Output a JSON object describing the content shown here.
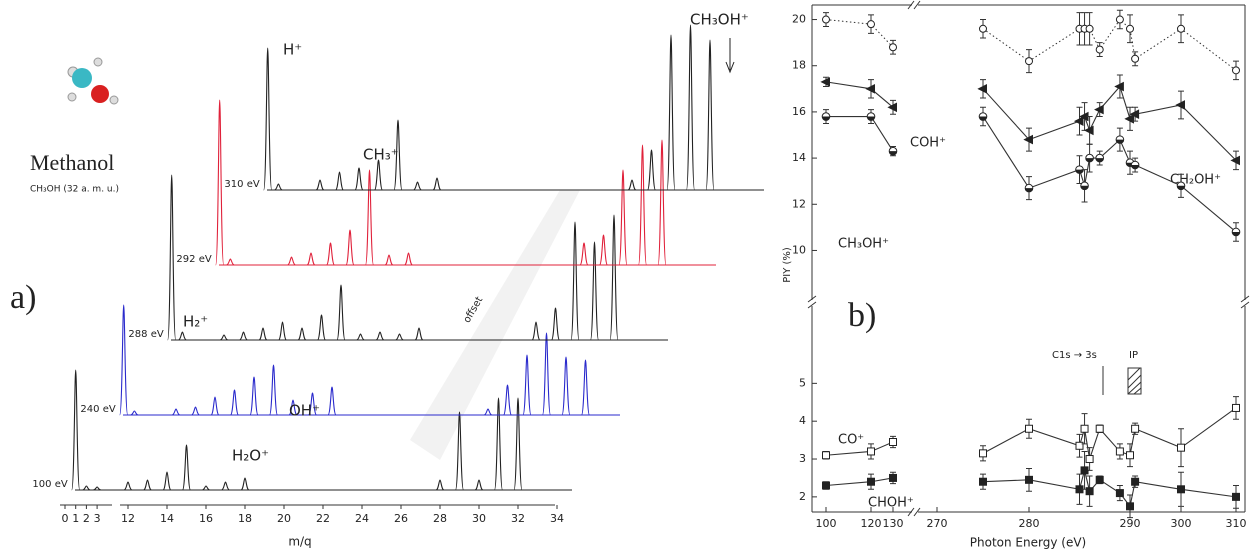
{
  "chart_data": [
    {
      "type": "spectra",
      "label": "a)",
      "title": "Methanol",
      "subtitle": "CH₃OH (32 a. m. u.)",
      "xlabel": "m/q",
      "offset_label": "offset",
      "xticks": [
        0,
        1,
        2,
        3,
        12,
        14,
        16,
        18,
        20,
        22,
        24,
        26,
        28,
        30,
        32,
        34
      ],
      "annotations": [
        "H⁺",
        "CH₃⁺",
        "CH₃OH⁺",
        "H₂⁺",
        "OH⁺",
        "H₂O⁺"
      ],
      "series": [
        {
          "name": "100 eV",
          "color": "#222222",
          "x": [
            1,
            2,
            3,
            12,
            13,
            14,
            15,
            16,
            17,
            18,
            28,
            29,
            30,
            31,
            32
          ],
          "values": [
            120,
            4,
            3,
            8,
            10,
            18,
            45,
            4,
            8,
            12,
            10,
            78,
            10,
            92,
            92
          ]
        },
        {
          "name": "240 eV",
          "color": "#2a2acc",
          "x": [
            1,
            2,
            12,
            13,
            14,
            15,
            16,
            17,
            18,
            19,
            20,
            28,
            29,
            30,
            31,
            32,
            33
          ],
          "values": [
            110,
            4,
            6,
            8,
            18,
            25,
            38,
            50,
            15,
            22,
            28,
            6,
            30,
            60,
            82,
            58,
            55
          ]
        },
        {
          "name": "288 eV",
          "color": "#222222",
          "x": [
            1,
            2,
            12,
            13,
            14,
            15,
            16,
            17,
            18,
            19,
            20,
            21,
            22,
            28,
            29,
            30,
            31,
            32
          ],
          "values": [
            165,
            8,
            5,
            8,
            12,
            18,
            12,
            25,
            55,
            6,
            8,
            6,
            12,
            18,
            32,
            118,
            98,
            125
          ]
        },
        {
          "name": "292 eV",
          "color": "#e0213a",
          "x": [
            1,
            2,
            13,
            14,
            15,
            16,
            17,
            18,
            19,
            28,
            29,
            30,
            31,
            32
          ],
          "values": [
            165,
            6,
            8,
            12,
            22,
            35,
            95,
            10,
            12,
            22,
            30,
            95,
            120,
            125
          ]
        },
        {
          "name": "310 eV",
          "color": "#222222",
          "x": [
            1,
            2,
            12,
            13,
            14,
            15,
            16,
            17,
            18,
            28,
            29,
            30,
            31,
            32
          ],
          "values": [
            142,
            6,
            10,
            18,
            22,
            30,
            70,
            8,
            12,
            10,
            40,
            155,
            165,
            150
          ]
        }
      ]
    },
    {
      "type": "scatter",
      "label": "b)",
      "xlabel": "Photon Energy (eV)",
      "ylabel": "PIY (%)",
      "xlim": [
        100,
        310
      ],
      "xticks": [
        100,
        120,
        130,
        270,
        280,
        290,
        300,
        310
      ],
      "annotations": [
        "C1s → 3s",
        "IP"
      ],
      "panels": [
        {
          "ylim": [
            9.5,
            20.5
          ],
          "yticks": [
            10,
            12,
            14,
            16,
            18,
            20
          ],
          "series": [
            {
              "name": "COH⁺",
              "marker": "circle-open",
              "line": "dotted",
              "x": [
                100,
                120,
                130,
                275,
                280,
                285,
                285.5,
                286,
                287,
                289,
                290,
                291,
                300,
                310
              ],
              "values": [
                20.0,
                19.8,
                18.8,
                19.6,
                18.2,
                19.6,
                19.6,
                19.6,
                18.7,
                20.0,
                19.6,
                18.3,
                19.6,
                17.8
              ],
              "errors": [
                0.3,
                0.4,
                0.3,
                0.4,
                0.5,
                0.7,
                0.7,
                0.7,
                0.3,
                0.4,
                0.6,
                0.3,
                0.6,
                0.4
              ]
            },
            {
              "name": "CH₂OH⁺",
              "marker": "triangle-left",
              "line": "solid",
              "x": [
                100,
                120,
                130,
                275,
                280,
                285,
                285.5,
                286,
                287,
                289,
                290,
                291,
                300,
                310
              ],
              "values": [
                17.3,
                17.0,
                16.2,
                17.0,
                14.8,
                15.6,
                15.8,
                15.2,
                16.1,
                17.1,
                15.7,
                15.9,
                16.3,
                13.9
              ],
              "errors": [
                0.2,
                0.4,
                0.3,
                0.4,
                0.5,
                0.6,
                0.6,
                0.6,
                0.3,
                0.5,
                0.5,
                0.3,
                0.6,
                0.4
              ]
            },
            {
              "name": "CH₃OH⁺",
              "marker": "circle-half",
              "line": "solid",
              "x": [
                100,
                120,
                130,
                275,
                280,
                285,
                285.5,
                286,
                287,
                289,
                290,
                291,
                300,
                310
              ],
              "values": [
                15.8,
                15.8,
                14.3,
                15.8,
                12.7,
                13.5,
                12.8,
                14.0,
                14.0,
                14.8,
                13.8,
                13.7,
                12.8,
                10.8
              ],
              "errors": [
                0.3,
                0.3,
                0.2,
                0.4,
                0.5,
                0.6,
                0.7,
                0.6,
                0.3,
                0.5,
                0.5,
                0.3,
                0.5,
                0.4
              ]
            }
          ]
        },
        {
          "ylim": [
            1.6,
            5.3
          ],
          "yticks": [
            2,
            3,
            4,
            5
          ],
          "series": [
            {
              "name": "CO⁺",
              "marker": "square-open",
              "line": "solid",
              "x": [
                100,
                120,
                130,
                275,
                280,
                285,
                285.5,
                286,
                287,
                289,
                290,
                291,
                300,
                310
              ],
              "values": [
                3.1,
                3.2,
                3.45,
                3.15,
                3.8,
                3.35,
                3.8,
                3.0,
                3.8,
                3.2,
                3.1,
                3.8,
                3.3,
                4.35
              ],
              "errors": [
                0.1,
                0.2,
                0.15,
                0.2,
                0.25,
                0.3,
                0.4,
                0.3,
                0.1,
                0.2,
                0.3,
                0.15,
                0.5,
                0.3
              ]
            },
            {
              "name": "CHOH⁺",
              "marker": "square-filled",
              "line": "solid",
              "x": [
                100,
                120,
                130,
                275,
                280,
                285,
                285.5,
                286,
                287,
                289,
                290,
                291,
                300,
                310
              ],
              "values": [
                2.3,
                2.4,
                2.5,
                2.4,
                2.45,
                2.2,
                2.7,
                2.15,
                2.45,
                2.1,
                1.75,
                2.4,
                2.2,
                2.0
              ],
              "errors": [
                0.1,
                0.2,
                0.15,
                0.2,
                0.3,
                0.4,
                0.5,
                0.4,
                0.1,
                0.2,
                0.3,
                0.15,
                0.45,
                0.3
              ]
            }
          ]
        }
      ]
    }
  ]
}
